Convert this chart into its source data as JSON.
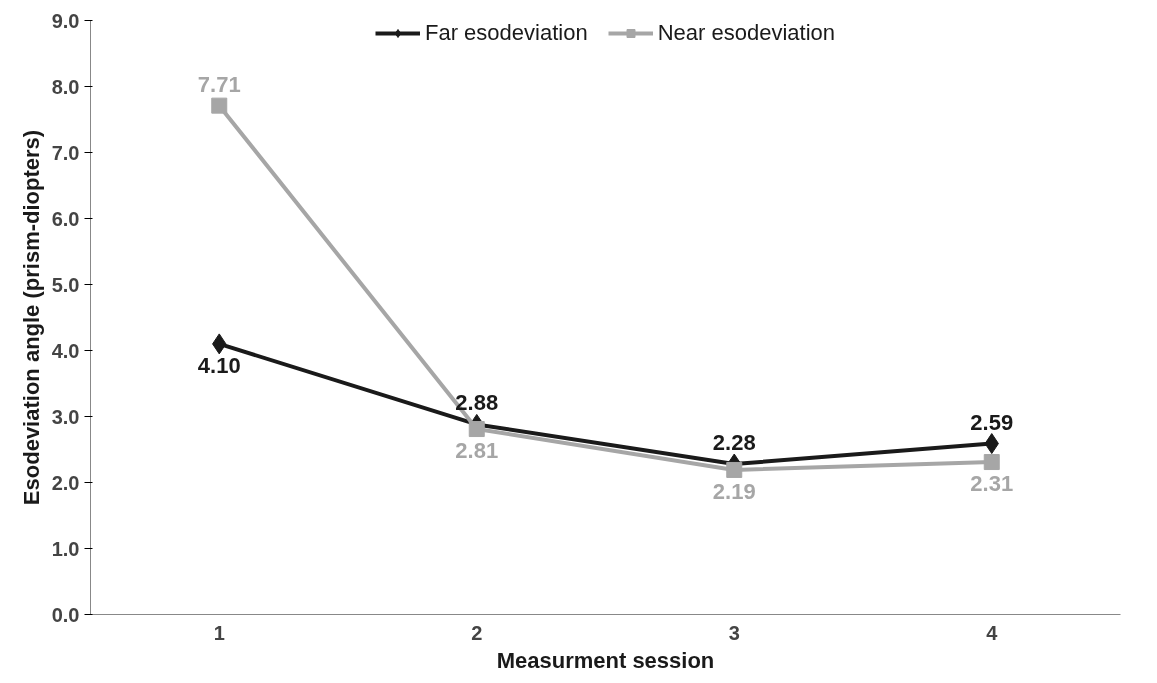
{
  "chart_data": {
    "type": "line",
    "xlabel": "Measurment session",
    "ylabel": "Esodeviation angle (prism-diopters)",
    "categories": [
      "1",
      "2",
      "3",
      "4"
    ],
    "series": [
      {
        "name": "Far esodeviation",
        "color": "#1a1a1a",
        "marker": "diamond",
        "values": [
          4.1,
          2.88,
          2.28,
          2.59
        ],
        "value_labels": [
          "4.10",
          "2.88",
          "2.28",
          "2.59"
        ]
      },
      {
        "name": "Near esodeviation",
        "color": "#a6a6a6",
        "marker": "square",
        "values": [
          7.71,
          2.81,
          2.19,
          2.31
        ],
        "value_labels": [
          "7.71",
          "2.81",
          "2.19",
          "2.31"
        ]
      }
    ],
    "ylim": [
      0,
      9
    ],
    "yticks": [
      {
        "value": 0,
        "label": "0.0"
      },
      {
        "value": 1,
        "label": "1.0"
      },
      {
        "value": 2,
        "label": "2.0"
      },
      {
        "value": 3,
        "label": "3.0"
      },
      {
        "value": 4,
        "label": "4.0"
      },
      {
        "value": 5,
        "label": "5.0"
      },
      {
        "value": 6,
        "label": "6.0"
      },
      {
        "value": 7,
        "label": "7.0"
      },
      {
        "value": 8,
        "label": "8.0"
      },
      {
        "value": 9,
        "label": "9.0"
      }
    ],
    "grid": false,
    "legend": "top",
    "line_style": "solid"
  }
}
